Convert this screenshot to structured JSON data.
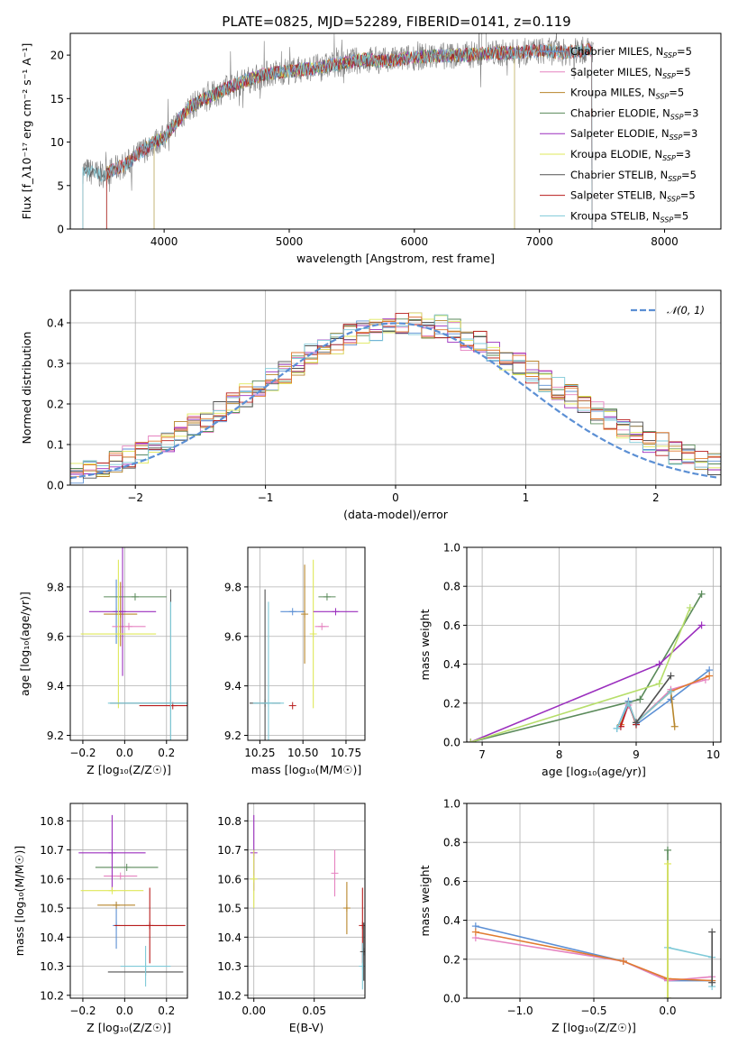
{
  "title": "PLATE=0825, MJD=52289, FIBERID=0141, z=0.119",
  "colors": {
    "chabrier_miles": "#5b8fd4",
    "salpeter_miles": "#e582c0",
    "kroupa_miles": "#b8862b",
    "chabrier_elodie": "#5a8a5a",
    "salpeter_elodie": "#9b2fbe",
    "kroupa_elodie": "#dfe85a",
    "chabrier_stelib": "#505050",
    "salpeter_stelib": "#b81c1c",
    "kroupa_stelib": "#7fcad8",
    "data_spectrum": "#7f7f7f",
    "gaussian": "#5b8fd4",
    "orange": "#e07b30",
    "lightgreen": "#b6de6a"
  },
  "chart_data": [
    {
      "id": "spectrum",
      "type": "line",
      "xlabel": "wavelength [Angstrom, rest frame]",
      "ylabel": "Flux [f_λ10⁻¹⁷ erg cm⁻² s⁻¹ A⁻¹]",
      "xlim": [
        3250,
        8450
      ],
      "ylim": [
        0,
        22.5
      ],
      "xticks": [
        4000,
        5000,
        6000,
        7000,
        8000
      ],
      "yticks": [
        0,
        5,
        10,
        15,
        20
      ],
      "legend_placement": "top-right",
      "series_names": [
        "Chabrier MILES, N_SSP=5",
        "Salpeter MILES, N_SSP=5",
        "Kroupa MILES, N_SSP=5",
        "Chabrier ELODIE, N_SSP=3",
        "Salpeter ELODIE, N_SSP=3",
        "Kroupa ELODIE, N_SSP=3",
        "Chabrier STELIB, N_SSP=5",
        "Salpeter STELIB, N_SSP=5",
        "Kroupa STELIB, N_SSP=5"
      ],
      "data_continuum": {
        "x": [
          3350,
          3500,
          3700,
          3900,
          4000,
          4200,
          4400,
          4600,
          4800,
          5000,
          5200,
          5400,
          5600,
          5800,
          6000,
          6200,
          6400,
          6600,
          6800,
          7000,
          7200,
          7400
        ],
        "y": [
          6.8,
          6.2,
          7.5,
          9.8,
          10.5,
          14.0,
          15.5,
          16.8,
          17.8,
          18.2,
          18.5,
          19.0,
          19.5,
          19.3,
          19.8,
          19.9,
          20.0,
          20.2,
          20.3,
          20.5,
          20.3,
          20.6
        ]
      }
    },
    {
      "id": "residual-histogram",
      "type": "line",
      "xlabel": "(data-model)/error",
      "ylabel": "Normed distribution",
      "xlim": [
        -2.5,
        2.5
      ],
      "ylim": [
        0,
        0.48
      ],
      "xticks": [
        -2,
        -1,
        0,
        1,
        2
      ],
      "yticks": [
        0.0,
        0.1,
        0.2,
        0.3,
        0.4
      ],
      "legend_entry": "𝒩(0, 1)",
      "legend_placement": "top-right",
      "bin_width": 0.1,
      "bin_start": -2.5,
      "base_histogram": [
        0.03,
        0.04,
        0.05,
        0.06,
        0.07,
        0.08,
        0.1,
        0.11,
        0.13,
        0.15,
        0.16,
        0.18,
        0.2,
        0.22,
        0.24,
        0.26,
        0.28,
        0.3,
        0.32,
        0.34,
        0.35,
        0.37,
        0.38,
        0.38,
        0.39,
        0.4,
        0.4,
        0.39,
        0.39,
        0.38,
        0.36,
        0.35,
        0.33,
        0.31,
        0.3,
        0.28,
        0.26,
        0.24,
        0.22,
        0.2,
        0.18,
        0.16,
        0.14,
        0.13,
        0.11,
        0.1,
        0.08,
        0.07,
        0.06,
        0.05
      ]
    },
    {
      "id": "age-vs-Z",
      "type": "scatter",
      "xlabel": "Z [log₁₀(Z/Z☉)]",
      "ylabel": "age  [log₁₀(age/yr)]",
      "xlim": [
        -0.26,
        0.3
      ],
      "ylim": [
        9.18,
        9.96
      ],
      "xticks": [
        -0.2,
        0.0,
        0.2
      ],
      "yticks": [
        9.2,
        9.4,
        9.6,
        9.8
      ],
      "points": [
        {
          "color": "chabrier_miles",
          "x": -0.04,
          "y": 9.7,
          "xerr": 0.01,
          "yerr": 0.13
        },
        {
          "color": "salpeter_miles",
          "x": 0.02,
          "y": 9.64,
          "xerr": 0.08,
          "yerr": 0.0
        },
        {
          "color": "kroupa_miles",
          "x": -0.02,
          "y": 9.69,
          "xerr": 0.08,
          "yerr": 0.13
        },
        {
          "color": "chabrier_elodie",
          "x": 0.05,
          "y": 9.76,
          "xerr": 0.15,
          "yerr": 0.0
        },
        {
          "color": "salpeter_elodie",
          "x": -0.01,
          "y": 9.7,
          "xerr": 0.16,
          "yerr": 0.26
        },
        {
          "color": "kroupa_elodie",
          "x": -0.03,
          "y": 9.61,
          "xerr": 0.18,
          "yerr": 0.3
        },
        {
          "color": "chabrier_stelib",
          "x": 0.22,
          "y": 9.33,
          "xerr": 0.29,
          "yerr": 0.46
        },
        {
          "color": "salpeter_stelib",
          "x": 0.23,
          "y": 9.32,
          "xerr": 0.16,
          "yerr": 0.0
        },
        {
          "color": "kroupa_stelib",
          "x": 0.22,
          "y": 9.33,
          "xerr": 0.3,
          "yerr": 0.41
        }
      ]
    },
    {
      "id": "age-vs-mass",
      "type": "scatter",
      "xlabel": "mass [log₁₀(M/M☉)]",
      "ylabel": "",
      "xlim": [
        10.18,
        10.86
      ],
      "ylim": [
        9.18,
        9.96
      ],
      "xticks": [
        10.25,
        10.5,
        10.75
      ],
      "yticks": [
        9.2,
        9.4,
        9.6,
        9.8
      ],
      "points": [
        {
          "color": "chabrier_stelib",
          "x": 10.28,
          "y": 9.33,
          "xerr": 0.09,
          "yerr": 0.46
        },
        {
          "color": "kroupa_stelib",
          "x": 10.3,
          "y": 9.33,
          "xerr": 0.09,
          "yerr": 0.41
        },
        {
          "color": "salpeter_stelib",
          "x": 10.44,
          "y": 9.32,
          "xerr": 0.0,
          "yerr": 0.0
        },
        {
          "color": "chabrier_miles",
          "x": 10.44,
          "y": 9.7,
          "xerr": 0.07,
          "yerr": 0.0
        },
        {
          "color": "kroupa_miles",
          "x": 10.51,
          "y": 9.69,
          "xerr": 0.0,
          "yerr": 0.2
        },
        {
          "color": "kroupa_elodie",
          "x": 10.56,
          "y": 9.61,
          "xerr": 0.0,
          "yerr": 0.3
        },
        {
          "color": "salpeter_miles",
          "x": 10.61,
          "y": 9.64,
          "xerr": 0.04,
          "yerr": 0.0
        },
        {
          "color": "chabrier_elodie",
          "x": 10.64,
          "y": 9.76,
          "xerr": 0.05,
          "yerr": 0.0
        },
        {
          "color": "salpeter_elodie",
          "x": 10.69,
          "y": 9.7,
          "xerr": 0.13,
          "yerr": 0.0
        }
      ]
    },
    {
      "id": "mass-weight-vs-age",
      "type": "line",
      "xlabel": "age  [log₁₀(age/yr)]",
      "ylabel": "mass weight",
      "xlim": [
        6.8,
        10.1
      ],
      "ylim": [
        0.0,
        1.0
      ],
      "xticks": [
        7,
        8,
        9,
        10
      ],
      "yticks": [
        0.0,
        0.2,
        0.4,
        0.6,
        0.8,
        1.0
      ],
      "series": [
        {
          "color": "chabrier_elodie",
          "x": [
            6.85,
            9.05,
            9.85
          ],
          "y": [
            0.0,
            0.22,
            0.76
          ]
        },
        {
          "color": "salpeter_elodie",
          "x": [
            6.85,
            9.3,
            9.85
          ],
          "y": [
            0.0,
            0.4,
            0.6
          ]
        },
        {
          "color": "lightgreen",
          "x": [
            6.85,
            9.3,
            9.7
          ],
          "y": [
            0.0,
            0.3,
            0.69
          ]
        },
        {
          "color": "chabrier_miles",
          "x": [
            8.75,
            8.9,
            9.0,
            9.45,
            9.95
          ],
          "y": [
            0.07,
            0.21,
            0.09,
            0.22,
            0.37
          ]
        },
        {
          "color": "salpeter_miles",
          "x": [
            8.8,
            8.9,
            9.0,
            9.45,
            9.9
          ],
          "y": [
            0.08,
            0.19,
            0.1,
            0.27,
            0.32
          ]
        },
        {
          "color": "orange",
          "x": [
            8.8,
            8.9,
            9.0,
            9.45,
            9.95
          ],
          "y": [
            0.09,
            0.2,
            0.1,
            0.26,
            0.34
          ]
        },
        {
          "color": "kroupa_miles",
          "x": [
            9.0,
            9.45,
            9.5
          ],
          "y": [
            0.1,
            0.26,
            0.08
          ]
        },
        {
          "color": "salpeter_stelib",
          "x": [
            8.8,
            8.9,
            9.0
          ],
          "y": [
            0.08,
            0.2,
            0.09
          ]
        },
        {
          "color": "kroupa_stelib",
          "x": [
            8.75,
            8.9,
            9.0,
            9.45
          ],
          "y": [
            0.07,
            0.2,
            0.1,
            0.26
          ]
        },
        {
          "color": "chabrier_stelib",
          "x": [
            9.0,
            9.45
          ],
          "y": [
            0.1,
            0.34
          ]
        }
      ]
    },
    {
      "id": "mass-vs-Z",
      "type": "scatter",
      "xlabel": "Z [log₁₀(Z/Z☉)]",
      "ylabel": "mass [log₁₀(M/M☉)]",
      "xlim": [
        -0.26,
        0.3
      ],
      "ylim": [
        10.19,
        10.86
      ],
      "xticks": [
        -0.2,
        0.0,
        0.2
      ],
      "yticks": [
        10.2,
        10.3,
        10.4,
        10.5,
        10.6,
        10.7,
        10.8
      ],
      "points": [
        {
          "color": "chabrier_miles",
          "x": -0.04,
          "y": 10.44,
          "xerr": 0.0,
          "yerr": 0.08
        },
        {
          "color": "salpeter_miles",
          "x": -0.02,
          "y": 10.61,
          "xerr": 0.08,
          "yerr": 0.0
        },
        {
          "color": "kroupa_miles",
          "x": -0.04,
          "y": 10.51,
          "xerr": 0.09,
          "yerr": 0.0
        },
        {
          "color": "chabrier_elodie",
          "x": 0.01,
          "y": 10.64,
          "xerr": 0.15,
          "yerr": 0.0
        },
        {
          "color": "salpeter_elodie",
          "x": -0.06,
          "y": 10.69,
          "xerr": 0.16,
          "yerr": 0.13
        },
        {
          "color": "kroupa_elodie",
          "x": -0.06,
          "y": 10.56,
          "xerr": 0.15,
          "yerr": 0.0
        },
        {
          "color": "chabrier_stelib",
          "x": 0.1,
          "y": 10.28,
          "xerr": 0.18,
          "yerr": 0.0
        },
        {
          "color": "salpeter_stelib",
          "x": 0.12,
          "y": 10.44,
          "xerr": 0.17,
          "yerr": 0.13
        },
        {
          "color": "kroupa_stelib",
          "x": 0.1,
          "y": 10.3,
          "xerr": 0.12,
          "yerr": 0.07
        }
      ]
    },
    {
      "id": "mass-vs-ebv",
      "type": "scatter",
      "xlabel": "E(B-V)",
      "ylabel": "",
      "xlim": [
        -0.005,
        0.092
      ],
      "ylim": [
        10.19,
        10.86
      ],
      "xticks": [
        0.0,
        0.05
      ],
      "yticks": [
        10.2,
        10.3,
        10.4,
        10.5,
        10.6,
        10.7,
        10.8
      ],
      "points": [
        {
          "color": "salpeter_elodie",
          "x": 0.0,
          "y": 10.69,
          "xerr": 0.0,
          "yerr": 0.13
        },
        {
          "color": "kroupa_elodie",
          "x": 0.0,
          "y": 10.6,
          "xerr": 0.0,
          "yerr": 0.1
        },
        {
          "color": "salpeter_miles",
          "x": 0.067,
          "y": 10.62,
          "xerr": 0.0,
          "yerr": 0.08
        },
        {
          "color": "kroupa_miles",
          "x": 0.077,
          "y": 10.5,
          "xerr": 0.0,
          "yerr": 0.09
        },
        {
          "color": "salpeter_stelib",
          "x": 0.09,
          "y": 10.44,
          "xerr": 0.0,
          "yerr": 0.13
        },
        {
          "color": "kroupa_stelib",
          "x": 0.09,
          "y": 10.3,
          "xerr": 0.0,
          "yerr": 0.08
        },
        {
          "color": "chabrier_stelib",
          "x": 0.091,
          "y": 10.35,
          "xerr": 0.0,
          "yerr": 0.1
        }
      ]
    },
    {
      "id": "mass-weight-vs-Z",
      "type": "line",
      "xlabel": "Z [log₁₀(Z/Z☉)]",
      "ylabel": "mass weight",
      "xlim": [
        -1.36,
        0.36
      ],
      "ylim": [
        0.0,
        1.0
      ],
      "xticks": [
        -1.0,
        -0.5,
        0.0
      ],
      "yticks": [
        0.0,
        0.2,
        0.4,
        0.6,
        0.8,
        1.0
      ],
      "series": [
        {
          "color": "chabrier_miles",
          "x": [
            -1.3,
            -0.3,
            0.0,
            0.3
          ],
          "y": [
            0.37,
            0.19,
            0.09,
            0.09
          ]
        },
        {
          "color": "salpeter_miles",
          "x": [
            -1.3,
            -0.3,
            0.0,
            0.3
          ],
          "y": [
            0.31,
            0.19,
            0.09,
            0.11
          ]
        },
        {
          "color": "orange",
          "x": [
            -1.3,
            -0.3,
            0.0,
            0.3
          ],
          "y": [
            0.34,
            0.19,
            0.1,
            0.09
          ]
        },
        {
          "color": "kroupa_stelib",
          "x": [
            0.0,
            0.3,
            0.3
          ],
          "y": [
            0.26,
            0.21,
            0.06
          ]
        },
        {
          "color": "chabrier_elodie",
          "x": [
            0.0,
            0.0
          ],
          "y": [
            0.0,
            0.76
          ]
        },
        {
          "color": "kroupa_elodie",
          "x": [
            0.0,
            0.0
          ],
          "y": [
            0.0,
            0.69
          ]
        },
        {
          "color": "chabrier_stelib",
          "x": [
            0.3,
            0.3
          ],
          "y": [
            0.08,
            0.34
          ]
        }
      ]
    }
  ]
}
